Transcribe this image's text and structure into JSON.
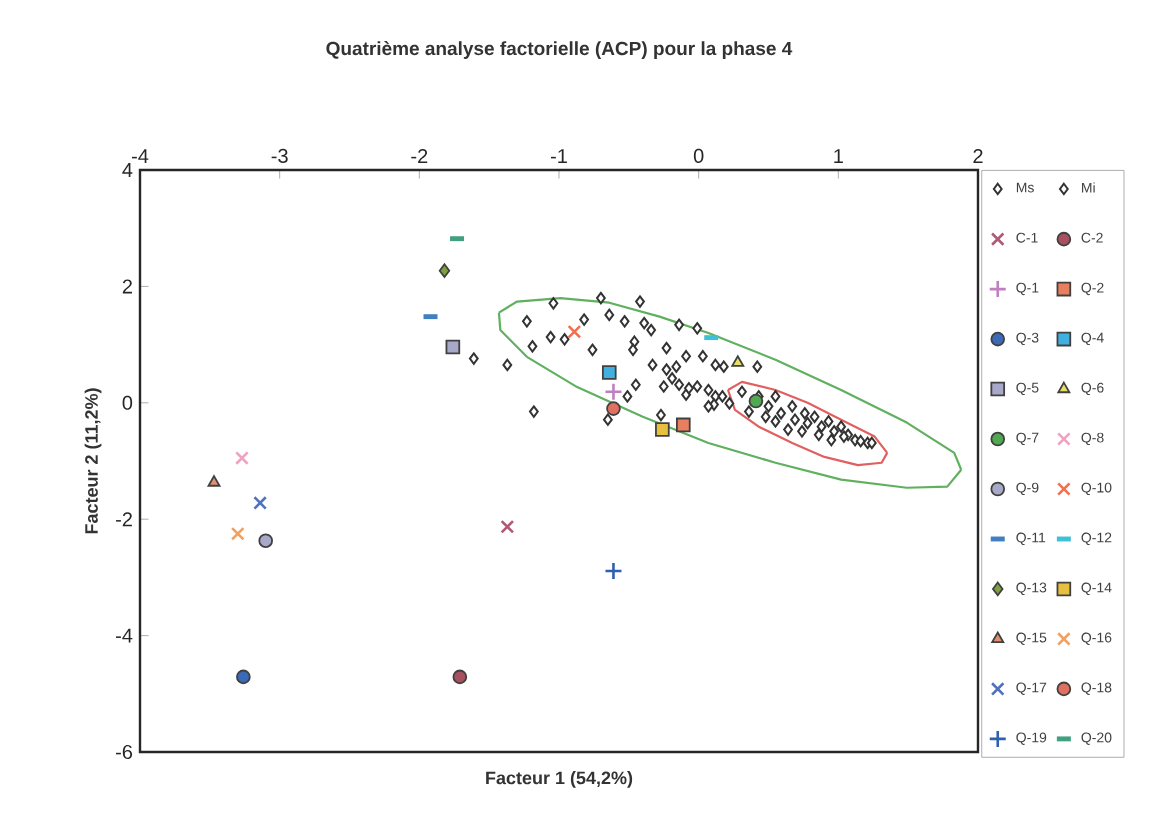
{
  "chart_data": {
    "type": "scatter",
    "title": "Quatrième analyse factorielle (ACP) pour la phase 4",
    "xlabel": "Facteur 1 (54,2%)",
    "ylabel": "Facteur 2 (11,2%)",
    "xlim": [
      -4,
      2
    ],
    "ylim": [
      -6,
      4
    ],
    "xticks": [
      -4,
      -3,
      -2,
      -1,
      0,
      1,
      2
    ],
    "yticks": [
      -6,
      -4,
      -2,
      0,
      2,
      4
    ],
    "legend": "right",
    "series": [
      {
        "name": "Ms",
        "color": "#333333",
        "marker": "diamond",
        "x": [
          -1.23,
          -1.04,
          -0.7,
          -0.42,
          -0.82,
          -0.64,
          -0.53,
          -0.39,
          -0.34,
          -1.06,
          -0.96,
          -1.19,
          -0.76,
          -0.46,
          -0.47,
          -1.37,
          -0.23,
          -0.14,
          -0.01,
          -0.09,
          0.03,
          0.12,
          0.18,
          0.42,
          -0.33,
          -0.23,
          -0.16,
          -0.19,
          -0.25,
          -0.14,
          -0.45,
          -0.51,
          -0.09,
          -0.01,
          0.07,
          0.12,
          0.11,
          -1.18,
          -0.65,
          -0.27,
          -0.07,
          -1.61
        ],
        "values": [
          1.4,
          1.71,
          1.8,
          1.74,
          1.43,
          1.51,
          1.4,
          1.37,
          1.25,
          1.13,
          1.09,
          0.97,
          0.91,
          1.05,
          0.91,
          0.65,
          0.94,
          1.34,
          1.28,
          0.8,
          0.8,
          0.65,
          0.62,
          0.62,
          0.65,
          0.57,
          0.62,
          0.42,
          0.28,
          0.31,
          0.31,
          0.11,
          0.14,
          0.28,
          0.22,
          0.11,
          -0.03,
          -0.15,
          -0.29,
          -0.21,
          0.25,
          0.76
        ]
      },
      {
        "name": "Mi",
        "color": "#333333",
        "marker": "diamond",
        "x": [
          0.31,
          0.43,
          0.5,
          0.55,
          0.59,
          0.67,
          0.69,
          0.76,
          0.78,
          0.83,
          0.88,
          0.93,
          0.97,
          1.02,
          1.07,
          1.12,
          1.16,
          1.21,
          1.24,
          0.48,
          0.55,
          0.64,
          0.74,
          0.86,
          0.95,
          1.04,
          0.36,
          0.22,
          0.07,
          0.17
        ],
        "values": [
          0.19,
          0.11,
          -0.06,
          0.11,
          -0.18,
          -0.06,
          -0.29,
          -0.18,
          -0.35,
          -0.24,
          -0.41,
          -0.32,
          -0.49,
          -0.41,
          -0.55,
          -0.64,
          -0.66,
          -0.69,
          -0.69,
          -0.24,
          -0.32,
          -0.46,
          -0.49,
          -0.55,
          -0.64,
          -0.58,
          -0.15,
          -0.01,
          -0.06,
          0.11
        ]
      },
      {
        "name": "C-1",
        "color": "#b05a7a",
        "marker": "cross",
        "x": [
          -1.37
        ],
        "values": [
          -2.13
        ]
      },
      {
        "name": "C-2",
        "color": "#a85060",
        "marker": "circle",
        "x": [
          -1.71
        ],
        "values": [
          -4.71
        ]
      },
      {
        "name": "Q-1",
        "color": "#c080c0",
        "marker": "plus",
        "x": [
          -0.61
        ],
        "values": [
          0.19
        ]
      },
      {
        "name": "Q-2",
        "color": "#e88060",
        "marker": "square",
        "x": [
          -0.11
        ],
        "values": [
          -0.38
        ]
      },
      {
        "name": "Q-3",
        "color": "#3a6ab8",
        "marker": "circle",
        "x": [
          -3.26
        ],
        "values": [
          -4.71
        ]
      },
      {
        "name": "Q-4",
        "color": "#40b0e0",
        "marker": "square",
        "x": [
          -0.64
        ],
        "values": [
          0.52
        ]
      },
      {
        "name": "Q-5",
        "color": "#a8a8c8",
        "marker": "square",
        "x": [
          -1.76
        ],
        "values": [
          0.96
        ]
      },
      {
        "name": "Q-6",
        "color": "#e8e060",
        "marker": "triangle",
        "x": [
          0.28
        ],
        "values": [
          0.69
        ]
      },
      {
        "name": "Q-7",
        "color": "#50a850",
        "marker": "circle",
        "x": [
          0.41
        ],
        "values": [
          0.03
        ]
      },
      {
        "name": "Q-8",
        "color": "#f0a0c0",
        "marker": "cross",
        "x": [
          -3.27
        ],
        "values": [
          -0.95
        ]
      },
      {
        "name": "Q-9",
        "color": "#a8a8c8",
        "marker": "circle",
        "x": [
          -3.1
        ],
        "values": [
          -2.37
        ]
      },
      {
        "name": "Q-10",
        "color": "#f07050",
        "marker": "cross",
        "x": [
          -0.89
        ],
        "values": [
          1.22
        ]
      },
      {
        "name": "Q-11",
        "color": "#4080c0",
        "x": [
          -1.92
        ],
        "values": [
          1.48
        ]
      },
      {
        "name": "Q-12",
        "color": "#40c0d8",
        "x": [
          0.09
        ],
        "values": [
          1.12
        ]
      },
      {
        "name": "Q-13",
        "color": "#80a040",
        "marker": "diamond",
        "x": [
          -1.82
        ],
        "values": [
          2.27
        ]
      },
      {
        "name": "Q-14",
        "color": "#e8c040",
        "marker": "square",
        "x": [
          -0.26
        ],
        "values": [
          -0.46
        ]
      },
      {
        "name": "Q-15",
        "color": "#e09070",
        "marker": "triangle",
        "x": [
          -3.47
        ],
        "values": [
          -1.37
        ]
      },
      {
        "name": "Q-16",
        "color": "#f0a060",
        "marker": "cross",
        "x": [
          -3.3
        ],
        "values": [
          -2.25
        ]
      },
      {
        "name": "Q-17",
        "color": "#5070c0",
        "marker": "cross",
        "x": [
          -3.14
        ],
        "values": [
          -1.72
        ]
      },
      {
        "name": "Q-18",
        "color": "#e07060",
        "marker": "circle",
        "x": [
          -0.61
        ],
        "values": [
          -0.1
        ]
      },
      {
        "name": "Q-19",
        "color": "#3060b0",
        "marker": "plus",
        "x": [
          -0.61
        ],
        "values": [
          -2.89
        ]
      },
      {
        "name": "Q-20",
        "color": "#40a080",
        "x": [
          -1.73
        ],
        "values": [
          2.82
        ]
      },
      {
        "type": "line",
        "color": "#60b060",
        "x": [
          -1.43,
          -1.3,
          -0.99,
          -0.64,
          -0.28,
          0.07,
          0.55,
          1.02,
          1.49,
          1.83,
          1.88
        ],
        "values": [
          1.55,
          1.74,
          1.8,
          1.72,
          1.48,
          1.2,
          0.74,
          0.22,
          -0.34,
          -0.86,
          -1.15
        ]
      },
      {
        "type": "line",
        "color": "#60b060",
        "x": [
          -1.43,
          -1.42,
          -1.23,
          -0.87,
          -0.4,
          0.07,
          0.55,
          1.02,
          1.49,
          1.78,
          1.88
        ],
        "values": [
          1.55,
          1.25,
          0.79,
          0.27,
          -0.24,
          -0.69,
          -1.03,
          -1.32,
          -1.46,
          -1.44,
          -1.15
        ]
      },
      {
        "type": "line",
        "color": "#e06060",
        "x": [
          0.21,
          0.31,
          0.55,
          0.78,
          1.02,
          1.26,
          1.35
        ],
        "values": [
          0.22,
          0.36,
          0.22,
          0.0,
          -0.29,
          -0.58,
          -0.86
        ]
      },
      {
        "type": "line",
        "color": "#e06060",
        "x": [
          0.21,
          0.26,
          0.43,
          0.67,
          0.9,
          1.14,
          1.31,
          1.35
        ],
        "values": [
          0.22,
          -0.12,
          -0.41,
          -0.69,
          -0.93,
          -1.07,
          -1.03,
          -0.86
        ]
      }
    ]
  }
}
